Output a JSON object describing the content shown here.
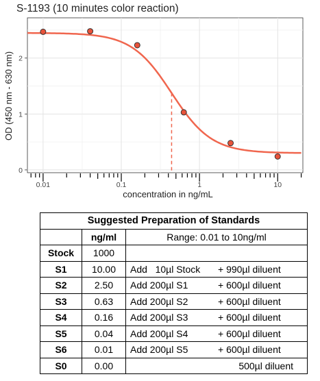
{
  "chart_data": {
    "type": "scatter",
    "title": "S-1193 (10 minutes color reaction)",
    "xlabel": "concentration in ng/mL",
    "ylabel": "OD (450 nm - 630 nm)",
    "xscale": "log",
    "xlim": [
      0.0063,
      21
    ],
    "ylim": [
      -0.05,
      2.72
    ],
    "xticks": [
      0.01,
      0.1,
      1,
      10
    ],
    "xtick_labels": [
      "0.01",
      "0.1",
      "1",
      "10"
    ],
    "yticks": [
      0,
      1,
      2
    ],
    "ytick_labels": [
      "0",
      "1",
      "2"
    ],
    "grid": true,
    "points": [
      {
        "x": 0.01,
        "y": 2.47
      },
      {
        "x": 0.04,
        "y": 2.48
      },
      {
        "x": 0.16,
        "y": 2.23
      },
      {
        "x": 0.63,
        "y": 1.03
      },
      {
        "x": 2.5,
        "y": 0.48
      },
      {
        "x": 10,
        "y": 0.24
      }
    ],
    "fit_curve": {
      "type": "4PL",
      "top": 2.45,
      "bottom": 0.3,
      "ec50": 0.44,
      "hill": 1.7,
      "x_range": [
        0.0063,
        20
      ]
    },
    "ec50_marker": {
      "x": 0.44
    },
    "colors": {
      "curve": "#f0664e",
      "point_fill": "#e8523a",
      "point_stroke": "#333333",
      "marker": "#f0664e"
    }
  },
  "table": {
    "title": "Suggested Preparation of Standards",
    "header_col": "ng/ml",
    "header_range": "Range: 0.01 to 10ng/ml",
    "stock": {
      "label": "Stock",
      "value": "1000"
    },
    "rows": [
      {
        "label": "S1",
        "value": "10.00",
        "add": "Add   10µl Stock",
        "diluent": "+ 990µl diluent"
      },
      {
        "label": "S2",
        "value": "2.50",
        "add": "Add 200µl S1",
        "diluent": "+ 600µl diluent"
      },
      {
        "label": "S3",
        "value": "0.63",
        "add": "Add 200µl S2",
        "diluent": "+ 600µl diluent"
      },
      {
        "label": "S4",
        "value": "0.16",
        "add": "Add 200µl S3",
        "diluent": "+ 600µl diluent"
      },
      {
        "label": "S5",
        "value": "0.04",
        "add": "Add 200µl S4",
        "diluent": "+ 600µl diluent"
      },
      {
        "label": "S6",
        "value": "0.01",
        "add": "Add 200µl S5",
        "diluent": "+ 600µl diluent"
      }
    ],
    "s0": {
      "label": "S0",
      "value": "0.00",
      "diluent": "500µl diluent"
    }
  }
}
